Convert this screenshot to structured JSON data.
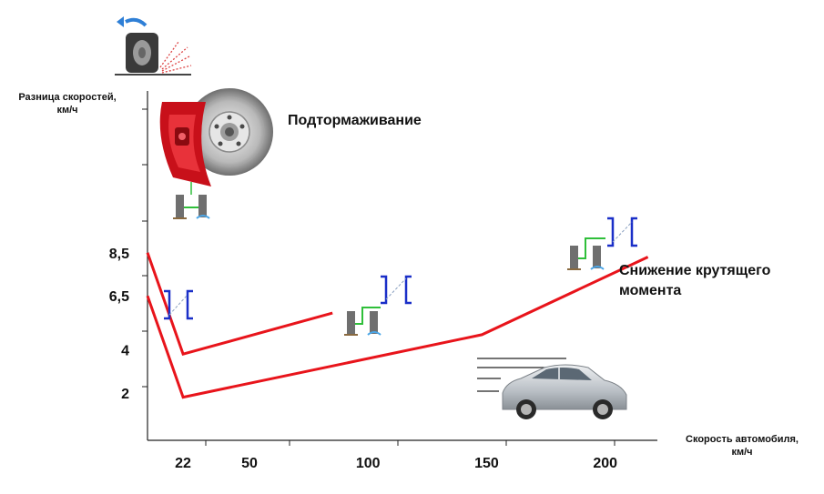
{
  "chart_data": {
    "type": "line",
    "title": "",
    "ylabel_line1": "Разница скоростей,",
    "ylabel_line2": "км/ч",
    "xlabel_line1": "Скорость автомобиля,",
    "xlabel_line2": "км/ч",
    "x_ticks": [
      "22",
      "50",
      "100",
      "150",
      "200"
    ],
    "y_ticks": [
      "2",
      "4",
      "6,5",
      "8,5"
    ],
    "xlim": [
      7,
      222
    ],
    "ylim": [
      -0.2,
      16
    ],
    "annotations": {
      "brake": "Подтормаживание",
      "torque_line1": "Снижение крутящего",
      "torque_line2": "момента"
    },
    "series": [
      {
        "values": [
          [
            7,
            8.5
          ],
          [
            22,
            3.8
          ],
          [
            85,
            5.7
          ]
        ]
      },
      {
        "values": [
          [
            7,
            6.5
          ],
          [
            22,
            1.8
          ],
          [
            148,
            4.7
          ],
          [
            218,
            8.3
          ]
        ]
      }
    ],
    "colors": {
      "line": "#e8141b",
      "axis": "#222222",
      "bracket": "#1a2fc8",
      "brake_caliper": "#c8101a",
      "car_body": "#c9ced3"
    },
    "icons": [
      "spinning-tire-icon",
      "brake-disc-icon",
      "wheel-pair-icon",
      "car-icon"
    ]
  }
}
